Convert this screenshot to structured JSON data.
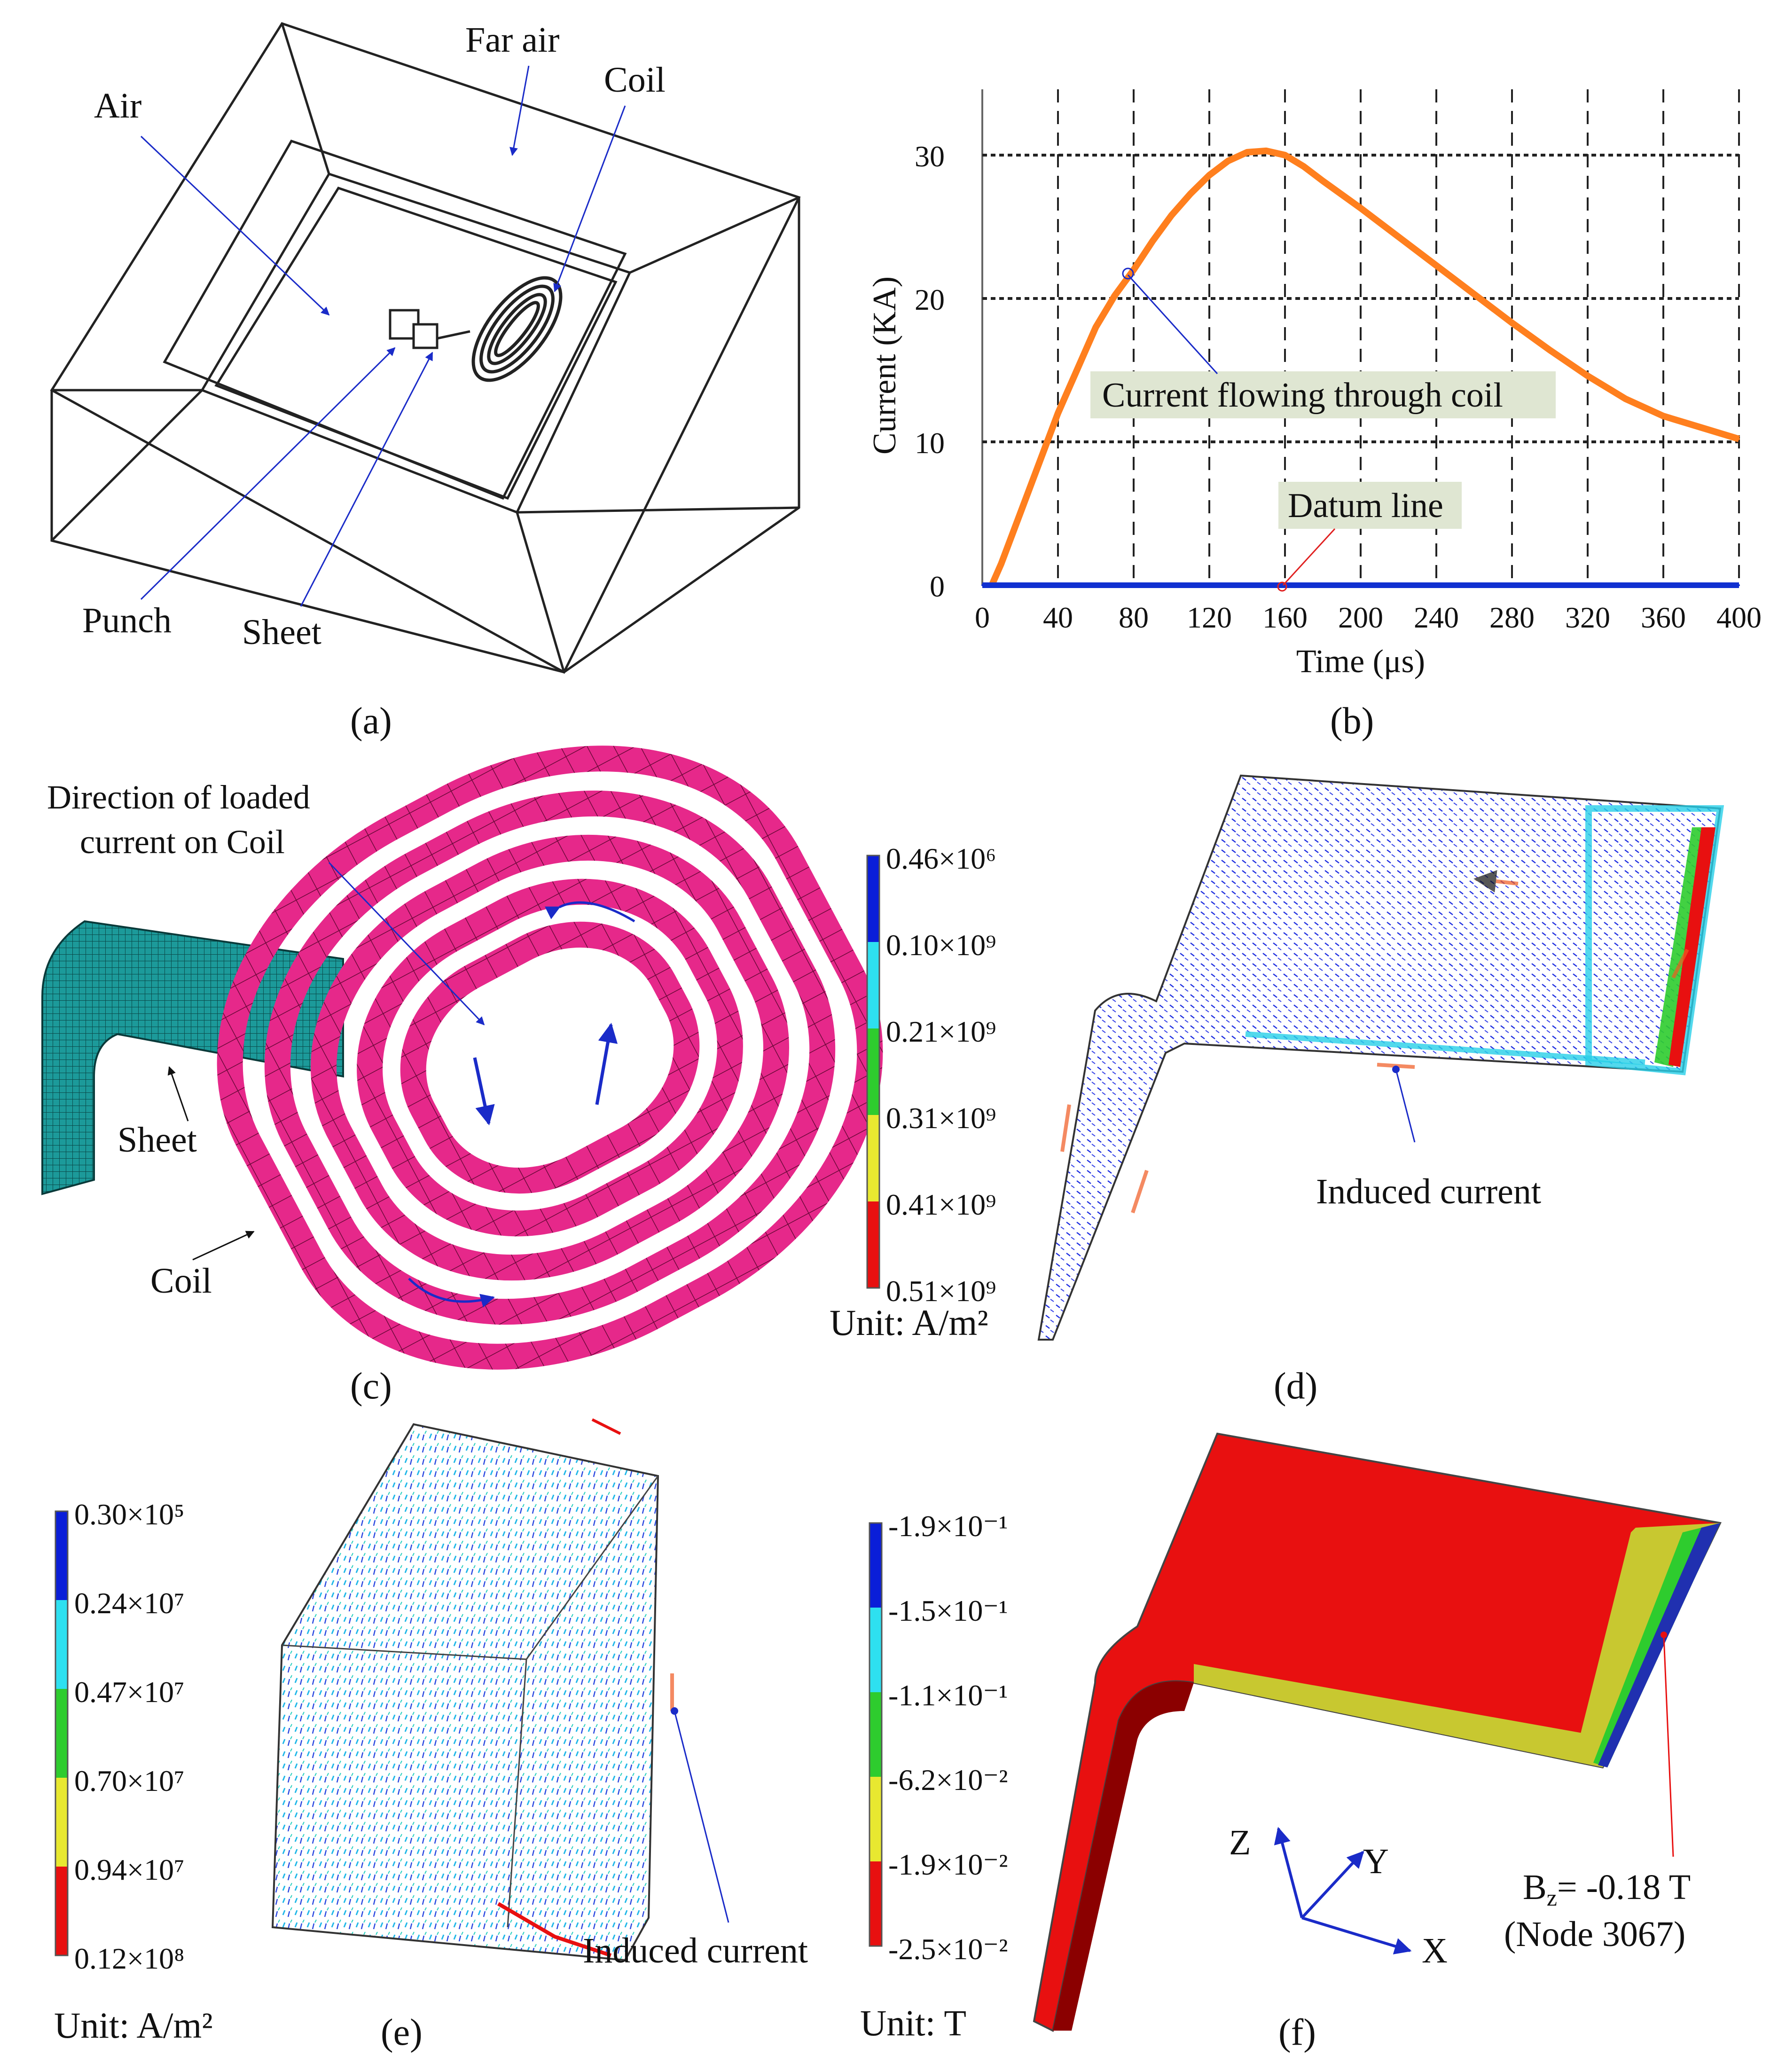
{
  "panel_a": {
    "label": "(a)",
    "callouts": {
      "far_air": "Far air",
      "coil": "Coil",
      "air": "Air",
      "punch": "Punch",
      "sheet": "Sheet"
    }
  },
  "panel_b": {
    "label": "(b)",
    "annotation_coil": "Current flowing through coil",
    "annotation_datum": "Datum line"
  },
  "panel_c": {
    "label": "(c)",
    "callouts": {
      "direction": "Direction of loaded",
      "direction2": "current on Coil",
      "sheet": "Sheet",
      "coil": "Coil"
    }
  },
  "panel_d": {
    "label": "(d)",
    "legend": [
      "0.46×10⁶",
      "0.10×10⁹",
      "0.21×10⁹",
      "0.31×10⁹",
      "0.41×10⁹",
      "0.51×10⁹"
    ],
    "unit": "Unit: A/m²",
    "callout": "Induced current"
  },
  "panel_e": {
    "label": "(e)",
    "legend": [
      "0.30×10⁵",
      "0.24×10⁷",
      "0.47×10⁷",
      "0.70×10⁷",
      "0.94×10⁷",
      "0.12×10⁸"
    ],
    "unit": "Unit: A/m²",
    "callout": "Induced current"
  },
  "panel_f": {
    "label": "(f)",
    "legend": [
      "-1.9×10⁻¹",
      "-1.5×10⁻¹",
      "-1.1×10⁻¹",
      "-6.2×10⁻²",
      "-1.9×10⁻²",
      "-2.5×10⁻²"
    ],
    "unit": "Unit: T",
    "axes": {
      "z": "Z",
      "y": "Y",
      "x": "X"
    },
    "callout_line1": "B",
    "callout_sub": "z",
    "callout_line1b": "= -0.18 T",
    "callout_line2": "(Node 3067)"
  },
  "legend_colors": [
    "#0a1ed8",
    "#2ee0f0",
    "#2ecc2e",
    "#e8e830",
    "#e81010"
  ],
  "chart_data": {
    "type": "line",
    "xlabel": "Time (μs)",
    "ylabel": "Current (KA)",
    "xlim": [
      0,
      400
    ],
    "ylim": [
      0,
      30
    ],
    "xticks": [
      0,
      40,
      80,
      120,
      160,
      200,
      240,
      280,
      320,
      360,
      400
    ],
    "yticks": [
      0,
      10,
      20,
      30
    ],
    "grid": true,
    "series": [
      {
        "name": "Current flowing through coil",
        "color": "#ff7f1e",
        "x": [
          5,
          10,
          20,
          30,
          40,
          50,
          60,
          70,
          80,
          90,
          100,
          110,
          120,
          130,
          140,
          150,
          160,
          170,
          180,
          200,
          220,
          240,
          260,
          280,
          300,
          320,
          340,
          360,
          380,
          400
        ],
        "y": [
          0,
          1.5,
          5,
          8.5,
          12,
          15,
          18,
          20.2,
          22,
          24,
          25.8,
          27.3,
          28.6,
          29.6,
          30.2,
          30.3,
          30.0,
          29.2,
          28.2,
          26.3,
          24.3,
          22.3,
          20.3,
          18.3,
          16.4,
          14.6,
          13.0,
          11.8,
          11.0,
          10.2
        ]
      },
      {
        "name": "Datum line",
        "color": "#1030d0",
        "x": [
          0,
          400
        ],
        "y": [
          0,
          0
        ]
      }
    ]
  }
}
